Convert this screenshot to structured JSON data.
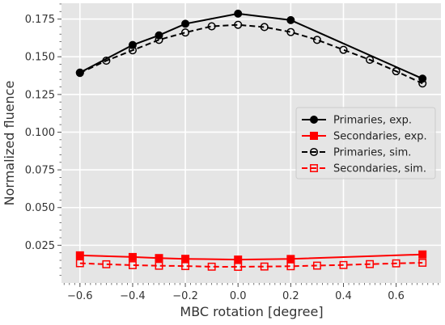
{
  "chart_data": {
    "type": "line",
    "title": "",
    "xlabel": "MBC rotation [degree]",
    "ylabel": "Normalized fluence",
    "xlim": [
      -0.67,
      0.77
    ],
    "ylim": [
      0.0,
      0.1855
    ],
    "xticks": [
      -0.6,
      -0.4,
      -0.2,
      0.0,
      0.2,
      0.4,
      0.6
    ],
    "xtick_labels": [
      "−0.6",
      "−0.4",
      "−0.2",
      "0.0",
      "0.2",
      "0.4",
      "0.6"
    ],
    "yticks": [
      0.025,
      0.05,
      0.075,
      0.1,
      0.125,
      0.15,
      0.175
    ],
    "ytick_labels": [
      "0.025",
      "0.050",
      "0.075",
      "0.100",
      "0.125",
      "0.150",
      "0.175"
    ],
    "grid": true,
    "legend_position": "center-right",
    "background": "#e5e5e5",
    "series": [
      {
        "name": "Primaries, exp.",
        "color": "#000000",
        "line": "solid",
        "marker": "filled-circle",
        "x": [
          -0.6,
          -0.4,
          -0.3,
          -0.2,
          0.0,
          0.2,
          0.7
        ],
        "y": [
          0.1395,
          0.1578,
          0.1642,
          0.1719,
          0.1786,
          0.1743,
          0.1355
        ]
      },
      {
        "name": "Secondaries, exp.",
        "color": "#ff0000",
        "line": "solid",
        "marker": "filled-square",
        "x": [
          -0.6,
          -0.4,
          -0.3,
          -0.2,
          0.0,
          0.2,
          0.7
        ],
        "y": [
          0.0183,
          0.0172,
          0.0165,
          0.016,
          0.0155,
          0.0159,
          0.0189
        ]
      },
      {
        "name": "Primaries, sim.",
        "color": "#000000",
        "line": "dashed",
        "marker": "open-circle",
        "x": [
          -0.6,
          -0.5,
          -0.4,
          -0.3,
          -0.2,
          -0.1,
          0.0,
          0.1,
          0.2,
          0.3,
          0.4,
          0.5,
          0.6,
          0.7
        ],
        "y": [
          0.1393,
          0.1474,
          0.1543,
          0.1612,
          0.1661,
          0.1702,
          0.1712,
          0.1697,
          0.1664,
          0.1612,
          0.1546,
          0.148,
          0.1404,
          0.1323
        ]
      },
      {
        "name": "Secondaries, sim.",
        "color": "#ff0000",
        "line": "dashed",
        "marker": "open-square",
        "x": [
          -0.6,
          -0.5,
          -0.4,
          -0.3,
          -0.2,
          -0.1,
          0.0,
          0.1,
          0.2,
          0.3,
          0.4,
          0.5,
          0.6,
          0.7
        ],
        "y": [
          0.0131,
          0.0124,
          0.0118,
          0.0114,
          0.0112,
          0.0108,
          0.0107,
          0.0109,
          0.0111,
          0.0115,
          0.0119,
          0.0125,
          0.013,
          0.0134
        ]
      }
    ]
  }
}
